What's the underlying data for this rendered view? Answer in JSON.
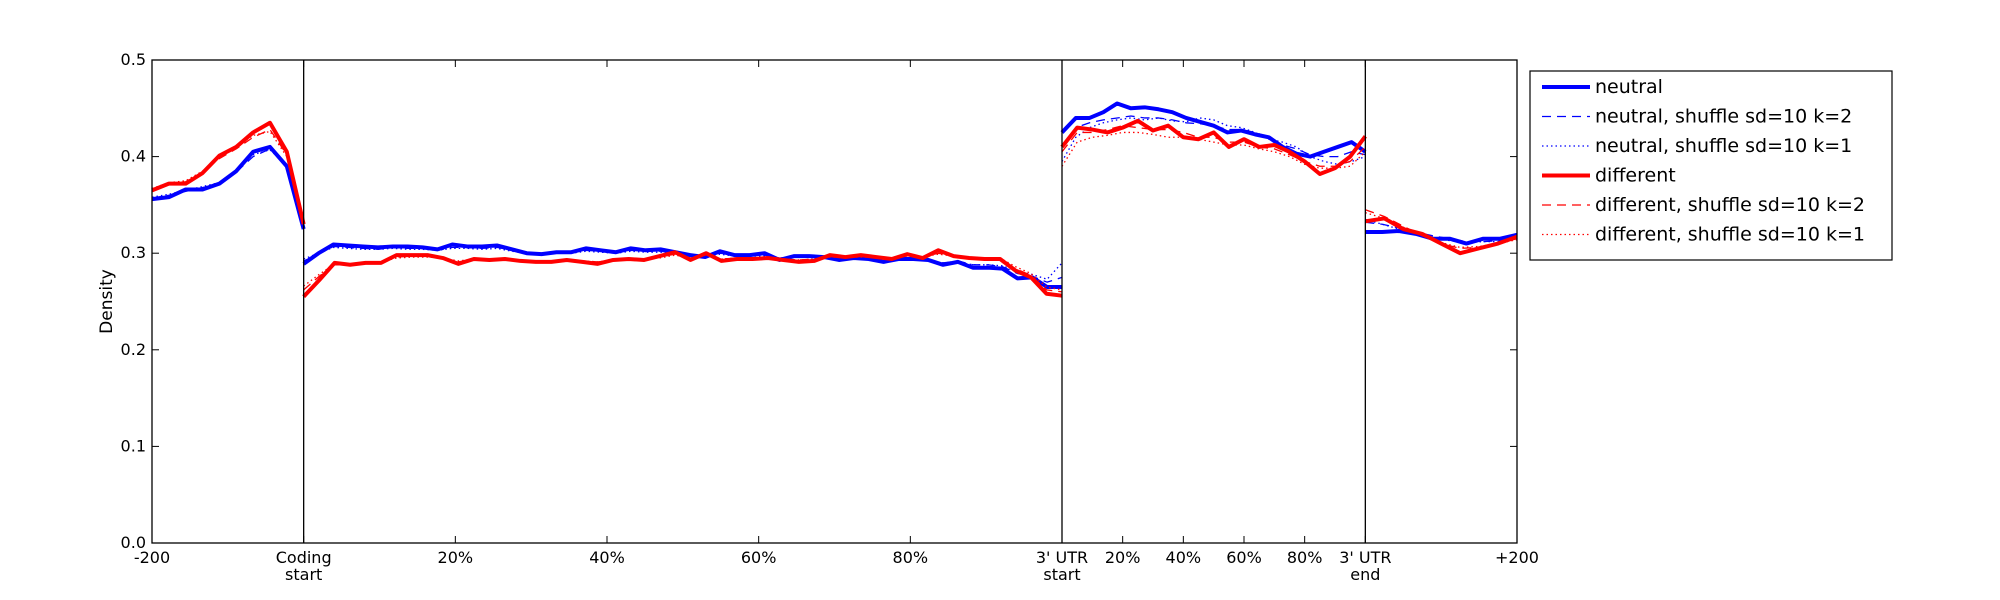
{
  "chart_data": {
    "type": "line",
    "title": "",
    "ylabel": "Density",
    "ylim": [
      0,
      0.5
    ],
    "yticks": [
      "0.0",
      "0.1",
      "0.2",
      "0.3",
      "0.4",
      "0.5"
    ],
    "grid": false,
    "legend_position": "outside-top-right",
    "segments": [
      {
        "name": "upstream",
        "x_range": [
          0,
          1
        ]
      },
      {
        "name": "coding",
        "x_range": [
          1,
          6
        ]
      },
      {
        "name": "utr",
        "x_range": [
          6,
          8
        ]
      },
      {
        "name": "downstream",
        "x_range": [
          8,
          9
        ]
      }
    ],
    "region_boundaries": [
      1,
      6,
      8
    ],
    "x_ticks": [
      {
        "x": 0,
        "lines": [
          "-200"
        ]
      },
      {
        "x": 1,
        "lines": [
          "Coding",
          "start"
        ]
      },
      {
        "x": 2,
        "lines": [
          "20%"
        ]
      },
      {
        "x": 3,
        "lines": [
          "40%"
        ]
      },
      {
        "x": 4,
        "lines": [
          "60%"
        ]
      },
      {
        "x": 5,
        "lines": [
          "80%"
        ]
      },
      {
        "x": 6,
        "lines": [
          "3' UTR",
          "start"
        ]
      },
      {
        "x": 6.4,
        "lines": [
          "20%"
        ]
      },
      {
        "x": 6.8,
        "lines": [
          "40%"
        ]
      },
      {
        "x": 7.2,
        "lines": [
          "60%"
        ]
      },
      {
        "x": 7.6,
        "lines": [
          "80%"
        ]
      },
      {
        "x": 8,
        "lines": [
          "3' UTR",
          "end"
        ]
      },
      {
        "x": 9,
        "lines": [
          "+200"
        ]
      }
    ],
    "colors": {
      "neutral": "#0000ff",
      "different": "#ff0000"
    },
    "series": [
      {
        "name": "neutral",
        "color": "#0000ff",
        "style": "solid",
        "width": 4,
        "segments": [
          [
            0.356,
            0.358,
            0.366,
            0.366,
            0.372,
            0.385,
            0.405,
            0.41,
            0.39,
            0.325
          ],
          [
            0.289,
            0.3,
            0.309,
            0.308,
            0.307,
            0.306,
            0.307,
            0.307,
            0.306,
            0.304,
            0.309,
            0.307,
            0.307,
            0.308,
            0.304,
            0.3,
            0.299,
            0.301,
            0.301,
            0.305,
            0.303,
            0.301,
            0.305,
            0.303,
            0.304,
            0.301,
            0.298,
            0.296,
            0.302,
            0.298,
            0.298,
            0.3,
            0.293,
            0.297,
            0.297,
            0.296,
            0.293,
            0.295,
            0.294,
            0.291,
            0.294,
            0.294,
            0.293,
            0.288,
            0.291,
            0.285,
            0.285,
            0.284,
            0.274,
            0.275,
            0.265,
            0.265
          ],
          [
            0.425,
            0.44,
            0.44,
            0.446,
            0.455,
            0.45,
            0.451,
            0.449,
            0.446,
            0.44,
            0.436,
            0.432,
            0.425,
            0.427,
            0.423,
            0.42,
            0.41,
            0.403,
            0.4,
            0.405,
            0.41,
            0.415,
            0.405
          ],
          [
            0.322,
            0.322,
            0.323,
            0.32,
            0.315,
            0.315,
            0.31,
            0.315,
            0.315,
            0.319
          ]
        ]
      },
      {
        "name": "neutral, shuffle sd=10 k=2",
        "color": "#0000ff",
        "style": "dashed",
        "width": 1.3,
        "segments": [
          [
            0.357,
            0.36,
            0.364,
            0.368,
            0.372,
            0.384,
            0.4,
            0.408,
            0.392,
            0.33
          ],
          [
            0.292,
            0.299,
            0.307,
            0.306,
            0.305,
            0.304,
            0.306,
            0.305,
            0.305,
            0.303,
            0.306,
            0.306,
            0.305,
            0.306,
            0.303,
            0.301,
            0.3,
            0.301,
            0.301,
            0.303,
            0.302,
            0.301,
            0.303,
            0.302,
            0.302,
            0.3,
            0.298,
            0.297,
            0.3,
            0.298,
            0.298,
            0.298,
            0.295,
            0.296,
            0.296,
            0.295,
            0.293,
            0.295,
            0.294,
            0.292,
            0.294,
            0.293,
            0.293,
            0.29,
            0.292,
            0.288,
            0.288,
            0.286,
            0.279,
            0.276,
            0.27,
            0.275
          ],
          [
            0.41,
            0.43,
            0.435,
            0.438,
            0.44,
            0.442,
            0.44,
            0.44,
            0.438,
            0.435,
            0.434,
            0.432,
            0.428,
            0.428,
            0.425,
            0.42,
            0.412,
            0.408,
            0.402,
            0.4,
            0.4,
            0.405,
            0.402
          ],
          [
            0.332,
            0.33,
            0.326,
            0.322,
            0.318,
            0.315,
            0.312,
            0.312,
            0.313,
            0.316
          ]
        ]
      },
      {
        "name": "neutral, shuffle sd=10 k=1",
        "color": "#0000ff",
        "style": "dotted",
        "width": 1.3,
        "segments": [
          [
            0.358,
            0.361,
            0.365,
            0.369,
            0.373,
            0.386,
            0.402,
            0.407,
            0.391,
            0.332
          ],
          [
            0.294,
            0.3,
            0.306,
            0.305,
            0.304,
            0.304,
            0.305,
            0.304,
            0.304,
            0.303,
            0.305,
            0.305,
            0.304,
            0.305,
            0.302,
            0.3,
            0.3,
            0.3,
            0.3,
            0.302,
            0.301,
            0.3,
            0.302,
            0.301,
            0.301,
            0.3,
            0.298,
            0.297,
            0.299,
            0.297,
            0.297,
            0.297,
            0.295,
            0.296,
            0.296,
            0.295,
            0.294,
            0.295,
            0.294,
            0.292,
            0.293,
            0.293,
            0.292,
            0.29,
            0.291,
            0.288,
            0.288,
            0.287,
            0.281,
            0.278,
            0.273,
            0.29
          ],
          [
            0.395,
            0.42,
            0.43,
            0.435,
            0.438,
            0.44,
            0.438,
            0.44,
            0.437,
            0.436,
            0.44,
            0.438,
            0.432,
            0.43,
            0.425,
            0.418,
            0.415,
            0.41,
            0.4,
            0.395,
            0.392,
            0.395,
            0.4
          ],
          [
            0.335,
            0.33,
            0.325,
            0.32,
            0.316,
            0.313,
            0.311,
            0.312,
            0.312,
            0.315
          ]
        ]
      },
      {
        "name": "different",
        "color": "#ff0000",
        "style": "solid",
        "width": 4,
        "segments": [
          [
            0.365,
            0.372,
            0.372,
            0.383,
            0.401,
            0.41,
            0.425,
            0.435,
            0.405,
            0.33
          ],
          [
            0.255,
            0.272,
            0.29,
            0.288,
            0.29,
            0.29,
            0.298,
            0.298,
            0.298,
            0.295,
            0.289,
            0.294,
            0.293,
            0.294,
            0.292,
            0.291,
            0.291,
            0.293,
            0.291,
            0.289,
            0.293,
            0.294,
            0.293,
            0.297,
            0.301,
            0.293,
            0.3,
            0.292,
            0.294,
            0.294,
            0.295,
            0.293,
            0.291,
            0.292,
            0.298,
            0.296,
            0.298,
            0.296,
            0.294,
            0.299,
            0.295,
            0.303,
            0.297,
            0.295,
            0.294,
            0.294,
            0.282,
            0.275,
            0.258,
            0.256
          ],
          [
            0.41,
            0.43,
            0.428,
            0.425,
            0.43,
            0.437,
            0.427,
            0.432,
            0.42,
            0.418,
            0.425,
            0.41,
            0.418,
            0.41,
            0.412,
            0.405,
            0.395,
            0.382,
            0.388,
            0.4,
            0.421
          ],
          [
            0.333,
            0.336,
            0.325,
            0.32,
            0.31,
            0.3,
            0.305,
            0.31,
            0.317
          ]
        ]
      },
      {
        "name": "different, shuffle sd=10 k=2",
        "color": "#ff0000",
        "style": "dashed",
        "width": 1.3,
        "segments": [
          [
            0.366,
            0.372,
            0.374,
            0.384,
            0.398,
            0.408,
            0.42,
            0.428,
            0.402,
            0.335
          ],
          [
            0.262,
            0.276,
            0.289,
            0.289,
            0.29,
            0.291,
            0.296,
            0.297,
            0.297,
            0.295,
            0.291,
            0.294,
            0.293,
            0.294,
            0.292,
            0.292,
            0.292,
            0.293,
            0.292,
            0.291,
            0.293,
            0.294,
            0.294,
            0.296,
            0.299,
            0.295,
            0.299,
            0.294,
            0.295,
            0.295,
            0.295,
            0.294,
            0.293,
            0.294,
            0.297,
            0.296,
            0.297,
            0.296,
            0.295,
            0.298,
            0.296,
            0.3,
            0.297,
            0.296,
            0.295,
            0.294,
            0.284,
            0.277,
            0.262,
            0.26
          ],
          [
            0.405,
            0.425,
            0.425,
            0.428,
            0.432,
            0.43,
            0.428,
            0.428,
            0.425,
            0.42,
            0.42,
            0.415,
            0.415,
            0.41,
            0.408,
            0.402,
            0.395,
            0.39,
            0.39,
            0.395,
            0.41
          ],
          [
            0.345,
            0.338,
            0.328,
            0.318,
            0.31,
            0.305,
            0.306,
            0.31,
            0.315
          ]
        ]
      },
      {
        "name": "different, shuffle sd=10 k=1",
        "color": "#ff0000",
        "style": "dotted",
        "width": 1.3,
        "segments": [
          [
            0.367,
            0.373,
            0.375,
            0.385,
            0.4,
            0.41,
            0.422,
            0.426,
            0.4,
            0.336
          ],
          [
            0.266,
            0.278,
            0.289,
            0.289,
            0.29,
            0.291,
            0.295,
            0.296,
            0.296,
            0.295,
            0.292,
            0.294,
            0.293,
            0.294,
            0.292,
            0.292,
            0.292,
            0.293,
            0.292,
            0.291,
            0.293,
            0.293,
            0.294,
            0.295,
            0.298,
            0.295,
            0.298,
            0.294,
            0.295,
            0.295,
            0.295,
            0.294,
            0.293,
            0.294,
            0.296,
            0.296,
            0.296,
            0.296,
            0.295,
            0.297,
            0.296,
            0.299,
            0.297,
            0.296,
            0.295,
            0.295,
            0.286,
            0.279,
            0.265,
            0.262
          ],
          [
            0.39,
            0.415,
            0.42,
            0.422,
            0.425,
            0.425,
            0.423,
            0.42,
            0.42,
            0.418,
            0.415,
            0.412,
            0.412,
            0.408,
            0.405,
            0.4,
            0.392,
            0.388,
            0.388,
            0.39,
            0.405
          ],
          [
            0.342,
            0.336,
            0.327,
            0.318,
            0.311,
            0.306,
            0.307,
            0.31,
            0.314
          ]
        ]
      }
    ]
  }
}
